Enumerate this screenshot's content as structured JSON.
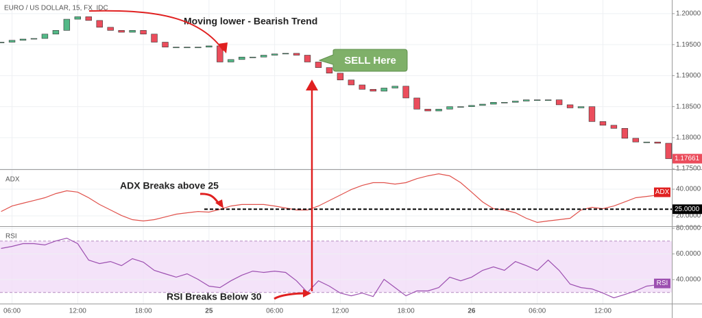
{
  "chart_data": {
    "type": "candlestick",
    "title": "EURO / US DOLLAR, 15, FX_IDC",
    "x": [
      5,
      6,
      7,
      8,
      9,
      10,
      11,
      12,
      13,
      14,
      15,
      16,
      17,
      18,
      19,
      20,
      21,
      22,
      23,
      24,
      25,
      26,
      27,
      28,
      29,
      30,
      31,
      32,
      33,
      34,
      35,
      36,
      37,
      38,
      39,
      40,
      41,
      42,
      43,
      44,
      45,
      46,
      47,
      48,
      49,
      50,
      51,
      52,
      53,
      54,
      55,
      56,
      57,
      58,
      59,
      60,
      61,
      62,
      63,
      64,
      65,
      66
    ],
    "xlim": [
      4.9,
      66.3
    ],
    "xticks": [
      {
        "value": 6,
        "label": "06:00"
      },
      {
        "value": 12,
        "label": "12:00"
      },
      {
        "value": 18,
        "label": "18:00"
      },
      {
        "value": 24,
        "label": "25"
      },
      {
        "value": 30,
        "label": "06:00"
      },
      {
        "value": 36,
        "label": "12:00"
      },
      {
        "value": 42,
        "label": "18:00"
      },
      {
        "value": 48,
        "label": "26"
      },
      {
        "value": 54,
        "label": "06:00"
      },
      {
        "value": 60,
        "label": "12:00"
      }
    ],
    "price": {
      "up_color": "#53b987",
      "down_color": "#eb4d5c",
      "close": [
        1.1954,
        1.1957,
        1.1959,
        1.196,
        1.1967,
        1.1973,
        1.1991,
        1.1995,
        1.1989,
        1.1978,
        1.1973,
        1.197,
        1.1973,
        1.1967,
        1.1954,
        1.1946,
        1.1946,
        1.1946,
        1.1946,
        1.1948,
        1.1922,
        1.1926,
        1.193,
        1.193,
        1.1933,
        1.1935,
        1.1936,
        1.1933,
        1.1922,
        1.1913,
        1.1904,
        1.1893,
        1.1885,
        1.1878,
        1.1875,
        1.188,
        1.1883,
        1.1864,
        1.1846,
        1.1843,
        1.1846,
        1.185,
        1.185,
        1.1852,
        1.1854,
        1.1857,
        1.1857,
        1.1859,
        1.1861,
        1.1861,
        1.1861,
        1.1853,
        1.1848,
        1.185,
        1.1826,
        1.182,
        1.1815,
        1.1799,
        1.1793,
        1.1793,
        1.1791,
        1.17661
      ],
      "last_label": "1.17661",
      "ylim": [
        1.1749,
        1.2022
      ],
      "yticks": [
        {
          "value": 1.2,
          "label": "1.20000"
        },
        {
          "value": 1.195,
          "label": "1.19500"
        },
        {
          "value": 1.19,
          "label": "1.19000"
        },
        {
          "value": 1.185,
          "label": "1.18500"
        },
        {
          "value": 1.18,
          "label": "1.18000"
        },
        {
          "value": 1.175,
          "label": "1.17500"
        }
      ]
    },
    "adx": {
      "name": "ADX",
      "color": "#e0504a",
      "values": [
        23.3,
        27.4,
        29.5,
        31.5,
        33.6,
        36.7,
        38.8,
        37.8,
        33.6,
        28.5,
        24.4,
        20.3,
        17.2,
        16.2,
        17.2,
        19.2,
        21.3,
        22.3,
        23.3,
        22.8,
        24.9,
        27.4,
        28.5,
        28.5,
        28.5,
        27.4,
        25.9,
        24.4,
        24.4,
        27.4,
        31.5,
        35.6,
        39.7,
        42.8,
        44.9,
        44.9,
        43.8,
        44.9,
        47.9,
        50,
        51.5,
        50,
        44.9,
        37.8,
        30.5,
        25.4,
        24.4,
        22.3,
        18.2,
        15.1,
        16.2,
        17.2,
        18.2,
        24.4,
        26.4,
        25.4,
        27.4,
        30.5,
        33.6,
        34.6,
        35.6,
        34.6
      ],
      "ylim": [
        12.3,
        54.4
      ],
      "yticks": [
        {
          "value": 40,
          "label": "40.0000"
        },
        {
          "value": 20,
          "label": "20.0000"
        }
      ],
      "threshold": {
        "value": 25,
        "label": "25.0000"
      }
    },
    "rsi": {
      "name": "RSI",
      "color": "#9c4fb0",
      "band_color": "#f1dcf7",
      "values": [
        64.3,
        65.9,
        68,
        68,
        67,
        70.1,
        72.3,
        68,
        55.2,
        52.5,
        54.1,
        50.9,
        56.3,
        53.6,
        47.2,
        44.5,
        41.9,
        44.5,
        40.2,
        34.9,
        33.8,
        39.1,
        43.4,
        46.6,
        45.6,
        46.6,
        45.6,
        39.1,
        30,
        39.1,
        34.9,
        29.5,
        27.4,
        29.5,
        26.8,
        40.2,
        33.8,
        27.4,
        31.2,
        31.2,
        33.8,
        41.9,
        39.1,
        41.9,
        47.2,
        49.9,
        47.2,
        54.1,
        50.9,
        47.2,
        55.2,
        47.2,
        36.5,
        33.8,
        32.7,
        29.5,
        25.8,
        28.4,
        31.2,
        34.9,
        36,
        33.8
      ],
      "ylim": [
        21.3,
        81.1
      ],
      "yticks": [
        {
          "value": 40,
          "label": "40.0000"
        },
        {
          "value": 60,
          "label": "60.0000"
        },
        {
          "value": 80,
          "label": "80.0000"
        }
      ],
      "band": [
        30,
        70
      ]
    },
    "annotations": {
      "trend": "Moving lower - Bearish Trend",
      "sell": "SELL Here",
      "adx_break": "ADX Breaks above 25",
      "rsi_break": "RSI Breaks Below 30"
    }
  }
}
